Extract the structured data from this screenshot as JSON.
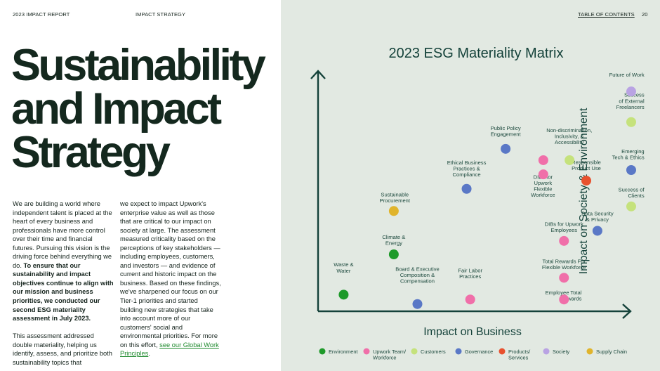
{
  "header": {
    "report": "2023 IMPACT REPORT",
    "section": "IMPACT STRATEGY",
    "toc": "TABLE OF CONTENTS",
    "page": "20"
  },
  "title": {
    "line1": "Sustainability",
    "line2": "and Impact",
    "line3": "Strategy"
  },
  "body": {
    "col1_p1_plain": "We are building a world where independent talent is placed at the heart of every business and professionals have more control over their time and financial futures. Pursuing this vision is the driving force behind everything we do. ",
    "col1_p1_bold": "To ensure that our sustainability and impact objectives continue to align with our mission and business priorities, we conducted our second ESG materiality assessment in July 2023.",
    "col1_p2": "This assessment addressed double materiality, helping us identify, assess, and prioritize both sustainability topics that",
    "col2_p1": "we expect to impact Upwork's enterprise value as well as those that are critical to our impact on society at large. The assessment measured criticality based on the perceptions of key stakeholders — including employees, customers, and investors — and evidence of current and historic impact on the business. Based on these findings, we've sharpened our focus on our Tier-1 priorities and started building new strategies that take into account more of our customers' social and environmental priorities. For more on this effort, ",
    "col2_link": "see our Global Work Principles",
    "col2_end": "."
  },
  "chart_data": {
    "type": "scatter",
    "title": "2023 ESG Materiality Matrix",
    "xlabel": "Impact on Business",
    "ylabel": "Impact on Society & Environment",
    "categories": {
      "Environment": "#1e9a2a",
      "Upwork Team/ Workforce": "#f06fa9",
      "Customers": "#c5e27c",
      "Governance": "#5a78c6",
      "Products/ Services": "#e8512e",
      "Society": "#b9a3e3",
      "Supply Chain": "#e0b42c"
    },
    "legend": [
      {
        "label": "Environment",
        "category": "Environment"
      },
      {
        "label": "Upwork Team/ Workforce",
        "category": "Upwork Team/ Workforce"
      },
      {
        "label": "Customers",
        "category": "Customers"
      },
      {
        "label": "Governance",
        "category": "Governance"
      },
      {
        "label": "Products/ Services",
        "category": "Products/ Services"
      },
      {
        "label": "Society",
        "category": "Society"
      },
      {
        "label": "Supply Chain",
        "category": "Supply Chain"
      }
    ],
    "points": [
      {
        "label": "Future of Work",
        "category": "Society",
        "x": 0.955,
        "y": 0.912
      },
      {
        "label": "Success of External Freelancers",
        "category": "Customers",
        "x": 0.955,
        "y": 0.785
      },
      {
        "label": "Public Policy Engagement",
        "category": "Governance",
        "x": 0.572,
        "y": 0.674
      },
      {
        "label": "Non-discrimination, Inclusivity, & Accessibility",
        "category": "Upwork Team/ Workforce",
        "x": 0.687,
        "y": 0.627
      },
      {
        "label": "Non-discrimination, Inclusivity, & Accessibility",
        "category": "Customers",
        "x": 0.767,
        "y": 0.627
      },
      {
        "label": "Emerging Tech & Ethics",
        "category": "Governance",
        "x": 0.955,
        "y": 0.586
      },
      {
        "label": "DIBs for Upwork Flexible Workforce",
        "category": "Upwork Team/ Workforce",
        "x": 0.687,
        "y": 0.568
      },
      {
        "label": "Responsible Product Use",
        "category": "Products/ Services",
        "x": 0.818,
        "y": 0.542
      },
      {
        "label": "Ethical Business Practices & Compliance",
        "category": "Governance",
        "x": 0.453,
        "y": 0.508
      },
      {
        "label": "Success of Clients",
        "category": "Customers",
        "x": 0.955,
        "y": 0.435
      },
      {
        "label": "Sustainable Procurement",
        "category": "Supply Chain",
        "x": 0.231,
        "y": 0.416
      },
      {
        "label": "Data Security & Privacy",
        "category": "Governance",
        "x": 0.852,
        "y": 0.334
      },
      {
        "label": "DIBs for Upwork Employees",
        "category": "Upwork Team/ Workforce",
        "x": 0.75,
        "y": 0.292
      },
      {
        "label": "Climate & Energy",
        "category": "Environment",
        "x": 0.231,
        "y": 0.236
      },
      {
        "label": "Total Rewards For Flexible Workforce",
        "category": "Upwork Team/ Workforce",
        "x": 0.75,
        "y": 0.139
      },
      {
        "label": "Waste & Water",
        "category": "Environment",
        "x": 0.078,
        "y": 0.069
      },
      {
        "label": "Board & Executive Composition & Compensation",
        "category": "Governance",
        "x": 0.303,
        "y": 0.03
      },
      {
        "label": "Fair Labor Practices",
        "category": "Upwork Team/ Workforce",
        "x": 0.464,
        "y": 0.049
      },
      {
        "label": "Employee Total Rewards",
        "category": "Upwork Team/ Workforce",
        "x": 0.75,
        "y": 0.049
      }
    ],
    "annotations": [
      {
        "lines": [
          "Future of Work"
        ],
        "anchor": "end",
        "x": 0.995,
        "y": 0.974
      },
      {
        "lines": [
          "Success",
          "of External",
          "Freelancers"
        ],
        "anchor": "end",
        "x": 0.995,
        "y": 0.89
      },
      {
        "lines": [
          "Public Policy",
          "Engagement"
        ],
        "anchor": "middle",
        "x": 0.572,
        "y": 0.752
      },
      {
        "lines": [
          "Non-discrimination,",
          "Inclusivity, &",
          "Accessibility"
        ],
        "anchor": "middle",
        "x": 0.766,
        "y": 0.744
      },
      {
        "lines": [
          "Emerging",
          "Tech & Ethics"
        ],
        "anchor": "end",
        "x": 0.995,
        "y": 0.656
      },
      {
        "lines": [
          "DIBs for",
          "Upwork",
          "Flexible",
          "Workforce"
        ],
        "anchor": "middle",
        "x": 0.686,
        "y": 0.55
      },
      {
        "lines": [
          "Responsible",
          "Product Use"
        ],
        "anchor": "middle",
        "x": 0.818,
        "y": 0.611
      },
      {
        "lines": [
          "Ethical Business",
          "Practices &",
          "Compliance"
        ],
        "anchor": "middle",
        "x": 0.453,
        "y": 0.61
      },
      {
        "lines": [
          "Success of",
          "Clients"
        ],
        "anchor": "end",
        "x": 0.995,
        "y": 0.497
      },
      {
        "lines": [
          "Sustainable",
          "Procurement"
        ],
        "anchor": "middle",
        "x": 0.234,
        "y": 0.477
      },
      {
        "lines": [
          "Data Security",
          "& Privacy"
        ],
        "anchor": "middle",
        "x": 0.852,
        "y": 0.398
      },
      {
        "lines": [
          "DIBs for Upwork",
          "Employees"
        ],
        "anchor": "middle",
        "x": 0.75,
        "y": 0.354
      },
      {
        "lines": [
          "Climate &",
          "Energy"
        ],
        "anchor": "middle",
        "x": 0.231,
        "y": 0.3
      },
      {
        "lines": [
          "Total Rewards For",
          "Flexible Workforce"
        ],
        "anchor": "middle",
        "x": 0.75,
        "y": 0.2
      },
      {
        "lines": [
          "Waste &",
          "Water"
        ],
        "anchor": "middle",
        "x": 0.078,
        "y": 0.186
      },
      {
        "lines": [
          "Board & Executive",
          "Composition &",
          "Compensation"
        ],
        "anchor": "middle",
        "x": 0.303,
        "y": 0.168
      },
      {
        "lines": [
          "Fair Labor",
          "Practices"
        ],
        "anchor": "middle",
        "x": 0.464,
        "y": 0.162
      },
      {
        "lines": [
          "Employee Total",
          "Rewards"
        ],
        "anchor": "end",
        "x": 0.804,
        "y": 0.07
      }
    ]
  }
}
